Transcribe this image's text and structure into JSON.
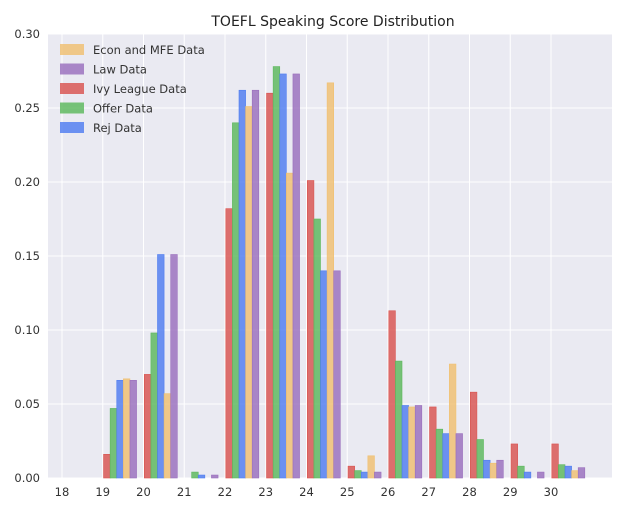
{
  "chart_data": {
    "type": "bar",
    "title": "TOEFL Speaking Score Distribution",
    "xlabel": "",
    "ylabel": "",
    "categories": [
      "18",
      "19",
      "20",
      "21",
      "22",
      "23",
      "24",
      "25",
      "26",
      "27",
      "28",
      "29",
      "30"
    ],
    "y_ticks": [
      "0.00",
      "0.05",
      "0.10",
      "0.15",
      "0.20",
      "0.25",
      "0.30"
    ],
    "ylim": [
      0,
      0.3
    ],
    "grid": true,
    "legend_position": "top-left",
    "series": [
      {
        "name": "Ivy League Data",
        "color": "#d9534f",
        "values": [
          0.0,
          0.016,
          0.07,
          0.0,
          0.182,
          0.26,
          0.201,
          0.008,
          0.113,
          0.048,
          0.058,
          0.023,
          0.023
        ]
      },
      {
        "name": "Offer Data",
        "color": "#5cb85c",
        "values": [
          0.0,
          0.047,
          0.098,
          0.004,
          0.24,
          0.278,
          0.175,
          0.005,
          0.079,
          0.033,
          0.026,
          0.008,
          0.009
        ]
      },
      {
        "name": "Rej Data",
        "color": "#4f7df0",
        "values": [
          0.0,
          0.066,
          0.151,
          0.002,
          0.262,
          0.273,
          0.14,
          0.004,
          0.049,
          0.03,
          0.012,
          0.004,
          0.008
        ]
      },
      {
        "name": "Econ and MFE Data",
        "color": "#f0c070",
        "values": [
          0.0,
          0.067,
          0.057,
          0.0,
          0.251,
          0.206,
          0.267,
          0.015,
          0.048,
          0.077,
          0.01,
          0.0,
          0.005
        ]
      },
      {
        "name": "Law Data",
        "color": "#9a6fbd",
        "values": [
          0.0,
          0.066,
          0.151,
          0.002,
          0.262,
          0.273,
          0.14,
          0.004,
          0.049,
          0.03,
          0.012,
          0.004,
          0.007
        ]
      }
    ],
    "legend_order": [
      "Econ and MFE Data",
      "Law Data",
      "Ivy League Data",
      "Offer Data",
      "Rej Data"
    ]
  }
}
